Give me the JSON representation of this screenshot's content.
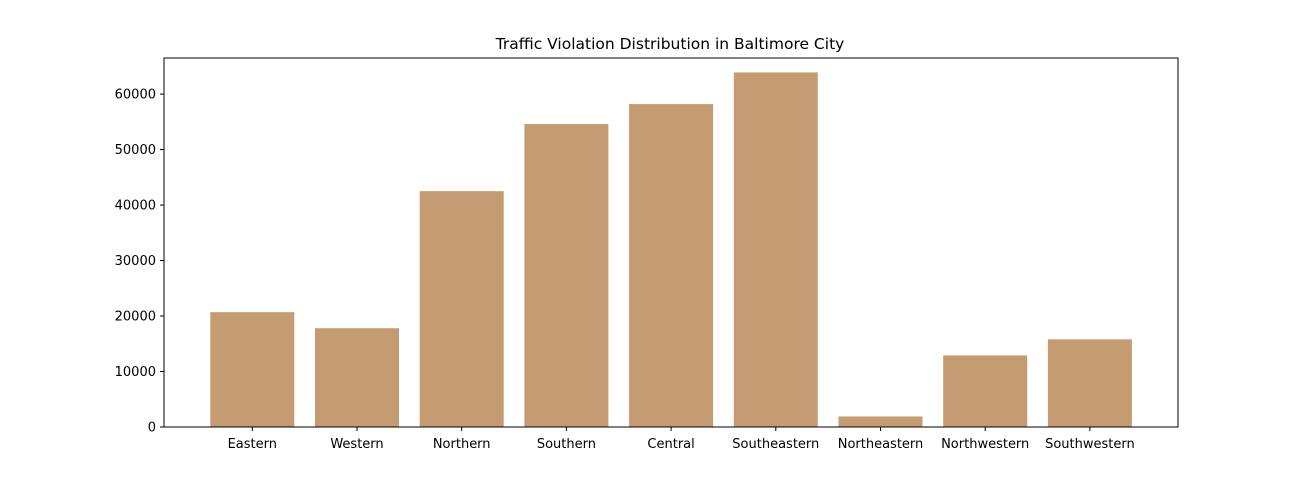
{
  "chart_data": {
    "type": "bar",
    "title": "Traffic Violation Distribution in Baltimore City",
    "xlabel": "",
    "ylabel": "",
    "categories": [
      "Eastern",
      "Western",
      "Northern",
      "Southern",
      "Central",
      "Southeastern",
      "Northeastern",
      "Northwestern",
      "Southwestern"
    ],
    "values": [
      20700,
      17800,
      42500,
      54600,
      58200,
      63900,
      1900,
      12900,
      15800
    ],
    "ylim": [
      0,
      66500
    ],
    "yticks": [
      0,
      10000,
      20000,
      30000,
      40000,
      50000,
      60000
    ],
    "ytick_labels": [
      "0",
      "10000",
      "20000",
      "30000",
      "40000",
      "50000",
      "60000"
    ],
    "bar_color": "#c59c71",
    "grid": false,
    "legend": "none"
  }
}
